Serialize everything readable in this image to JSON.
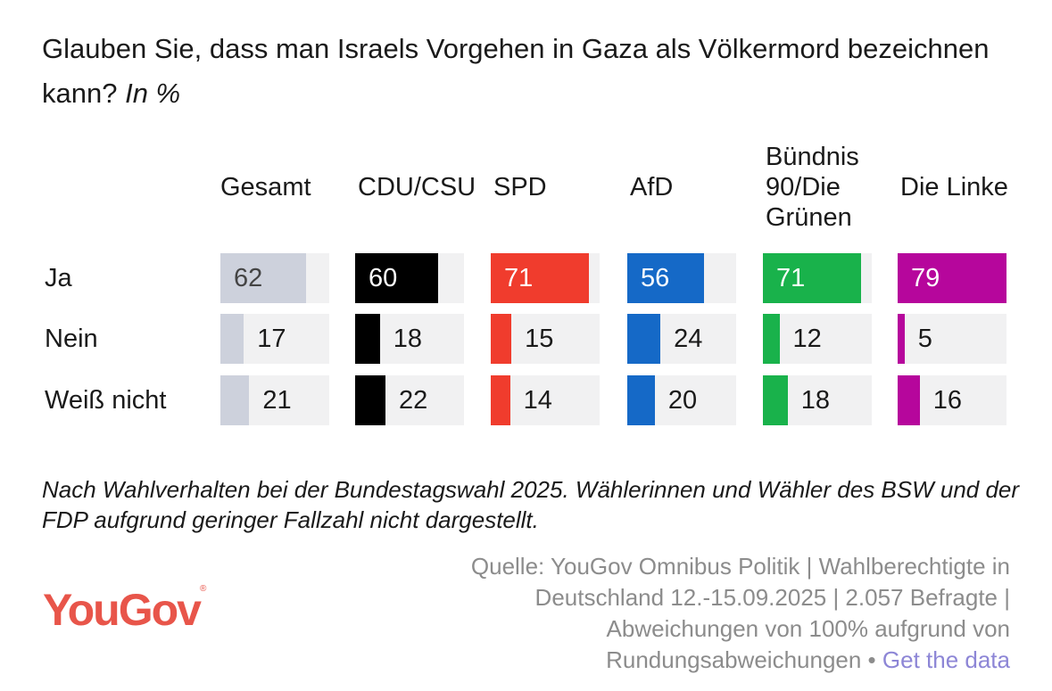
{
  "title": "Glauben Sie, dass man Israels Vorgehen in Gaza als Völkermord bezeichnen kann?",
  "title_unit": "In %",
  "chart_data": {
    "type": "table",
    "categories": [
      "Ja",
      "Nein",
      "Weiß nicht"
    ],
    "series": [
      {
        "name": "Gesamt",
        "color": "#cdd1dc",
        "values": [
          62,
          17,
          21
        ]
      },
      {
        "name": "CDU/CSU",
        "color": "#000000",
        "values": [
          60,
          18,
          22
        ]
      },
      {
        "name": "SPD",
        "color": "#f03c2d",
        "values": [
          71,
          15,
          14
        ]
      },
      {
        "name": "AfD",
        "color": "#1569c7",
        "values": [
          56,
          24,
          20
        ]
      },
      {
        "name": "Bündnis 90/Die Grünen",
        "color": "#19b24b",
        "values": [
          71,
          12,
          18
        ]
      },
      {
        "name": "Die Linke",
        "color": "#b6069c",
        "values": [
          79,
          5,
          16
        ]
      }
    ]
  },
  "note": "Nach Wahlverhalten bei der Bundestagswahl 2025. Wählerinnen und Wähler des BSW und der FDP aufgrund geringer Fallzahl nicht dargestellt.",
  "source": "Quelle: YouGov Omnibus Politik | Wahlberechtigte in Deutschland 12.-15.09.2025 | 2.057 Befragte | Abweichungen von 100% aufgrund von Rundungsabweichungen •",
  "get_data": "Get the data",
  "logo": "YouGov"
}
